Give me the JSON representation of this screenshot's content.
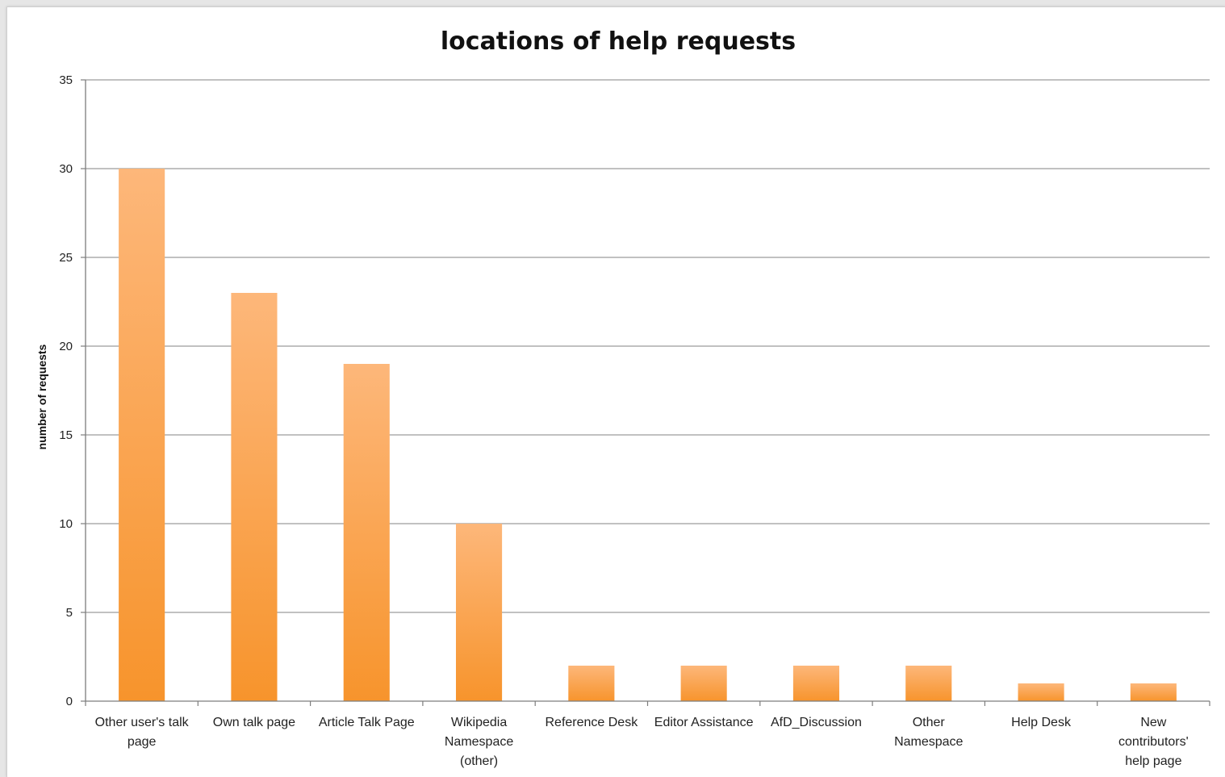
{
  "chart_data": {
    "type": "bar",
    "title": "locations of help requests",
    "xlabel": "",
    "ylabel": "number of requests",
    "ylim": [
      0,
      35
    ],
    "yticks": [
      0,
      5,
      10,
      15,
      20,
      25,
      30,
      35
    ],
    "grid": true,
    "legend": "none",
    "categories": [
      "Other user's talk page",
      "Own talk page",
      "Article Talk Page",
      "Wikipedia Namespace (other)",
      "Reference Desk",
      "Editor Assistance",
      "AfD_Discussion",
      "Other Namespace",
      "Help Desk",
      "New contributors' help page"
    ],
    "category_lines": [
      [
        "Other user's talk",
        "page"
      ],
      [
        "Own talk page"
      ],
      [
        "Article Talk Page"
      ],
      [
        "Wikipedia",
        "Namespace",
        "(other)"
      ],
      [
        "Reference Desk"
      ],
      [
        "Editor Assistance"
      ],
      [
        "AfD_Discussion"
      ],
      [
        "Other",
        "Namespace"
      ],
      [
        "Help Desk"
      ],
      [
        "New",
        "contributors'",
        "help page"
      ]
    ],
    "values": [
      30,
      23,
      19,
      10,
      2,
      2,
      2,
      2,
      1,
      1
    ],
    "colors": {
      "bar_top": "#fdb77a",
      "bar_bottom": "#f7942c"
    }
  }
}
